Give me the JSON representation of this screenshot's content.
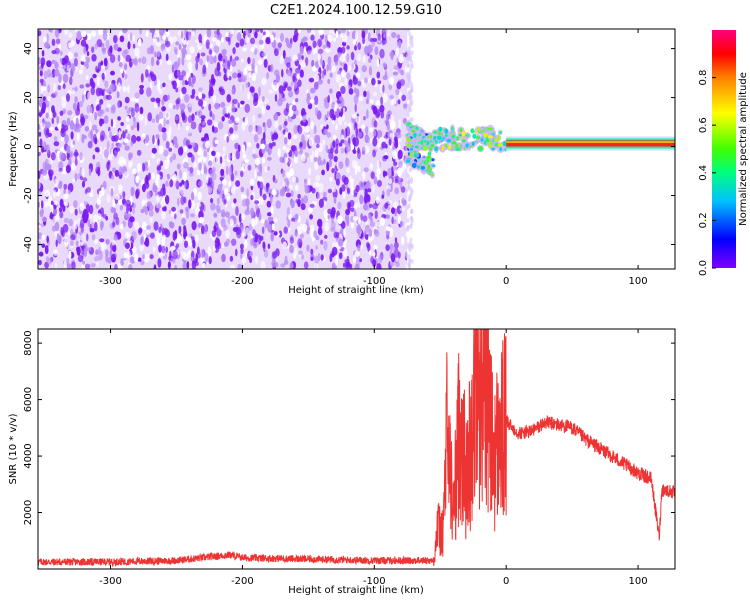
{
  "chart_data": [
    {
      "type": "heatmap",
      "title": "C2E1.2024.100.12.59.G10",
      "xlabel": "Height of straight line (km)",
      "ylabel": "Frequency (Hz)",
      "xlim": [
        -355,
        128
      ],
      "ylim": [
        -50,
        48
      ],
      "xticks": [
        -300,
        -200,
        -100,
        0,
        100
      ],
      "yticks": [
        -40,
        -20,
        0,
        20,
        40
      ],
      "grid": false,
      "colorbar": {
        "label": "Normalized spectral amplitude",
        "range": [
          0,
          1
        ],
        "ticks": [
          0.0,
          0.2,
          0.4,
          0.6,
          0.8
        ],
        "colormap": [
          "#8000ff",
          "#0000ff",
          "#00c0ff",
          "#00ff80",
          "#40ff00",
          "#ffff00",
          "#ff8000",
          "#ff0000",
          "#ff0080"
        ]
      },
      "regions": [
        {
          "x_range": [
            -355,
            -75
          ],
          "freq_range": [
            -50,
            48
          ],
          "amplitude": 0.05
        },
        {
          "x_range": [
            -75,
            -55
          ],
          "freq_range": [
            -8,
            8
          ],
          "amplitude": 0.35
        },
        {
          "x_range": [
            -55,
            0
          ],
          "freq_range": [
            -3,
            6
          ],
          "amplitude": 0.45
        },
        {
          "x_range": [
            0,
            128
          ],
          "freq_range": [
            0,
            2.5
          ],
          "amplitude": 0.95
        }
      ]
    },
    {
      "type": "line",
      "xlabel": "Height of straight line (km)",
      "ylabel": "SNR (10 * v/v)",
      "xlim": [
        -355,
        128
      ],
      "ylim": [
        0,
        8500
      ],
      "xticks": [
        -300,
        -200,
        -100,
        0,
        100
      ],
      "yticks": [
        2000,
        4000,
        6000,
        8000
      ],
      "grid": false,
      "color": "#ee3333",
      "series": [
        {
          "x": [
            -355,
            -300,
            -250,
            -210,
            -200,
            -150,
            -100,
            -55,
            -52,
            -48,
            -45,
            -40,
            -35,
            -30,
            -25,
            -20,
            -18,
            -16,
            -14,
            -12,
            -10,
            -5,
            0,
            10,
            20,
            30,
            40,
            50,
            60,
            80,
            100,
            110,
            116,
            118,
            120,
            128
          ],
          "values": [
            250,
            250,
            300,
            500,
            400,
            350,
            300,
            300,
            1500,
            1200,
            4800,
            2000,
            5400,
            3000,
            5600,
            7000,
            6500,
            8300,
            6000,
            5000,
            4000,
            4500,
            5200,
            4800,
            4900,
            5200,
            5100,
            5000,
            4600,
            4000,
            3400,
            3200,
            1100,
            2800,
            2800,
            2700
          ]
        }
      ]
    }
  ]
}
